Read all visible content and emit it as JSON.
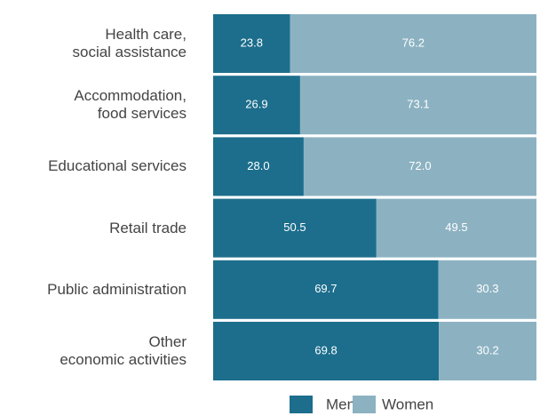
{
  "chart_data": {
    "type": "stacked-bar-100",
    "categories": [
      "Health care,\nsocial assistance",
      "Accommodation,\nfood services",
      "Educational services",
      "Retail trade",
      "Public administration",
      "Other\neconomic activities"
    ],
    "series": [
      {
        "name": "Men",
        "color": "#1c6e8c",
        "values": [
          23.8,
          26.9,
          28.0,
          50.5,
          69.7,
          69.8
        ],
        "value_labels": [
          "23.8",
          "26.9",
          "28.0",
          "50.5",
          "69.7",
          "69.8"
        ]
      },
      {
        "name": "Women",
        "color": "#8cb2c2",
        "values": [
          76.2,
          73.1,
          72.0,
          49.5,
          30.3,
          30.2
        ],
        "value_labels": [
          "76.2",
          "73.1",
          "72.0",
          "49.5",
          "30.3",
          "30.2"
        ]
      }
    ],
    "legend": "bottom"
  }
}
